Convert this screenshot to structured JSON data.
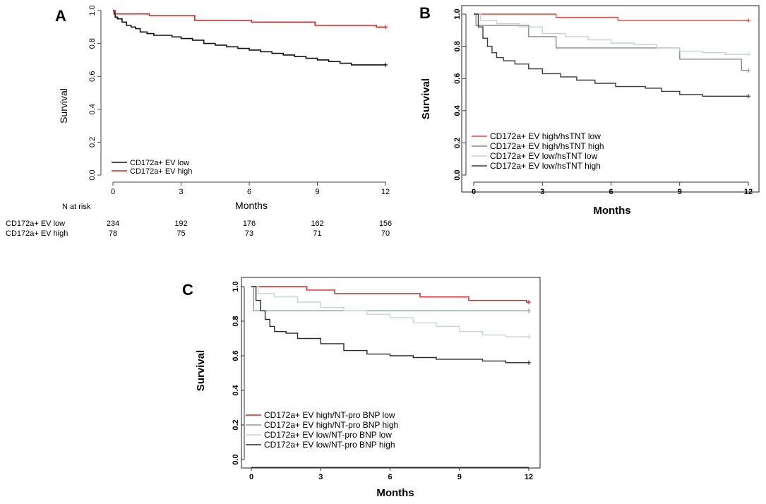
{
  "chart_data": [
    {
      "panel_label": "A",
      "type": "line",
      "title": "",
      "xlabel": "Months",
      "ylabel": "Survival",
      "xlim": [
        0,
        12
      ],
      "ylim": [
        0,
        1
      ],
      "x_ticks": [
        "0",
        "3",
        "6",
        "9",
        "12"
      ],
      "y_ticks": [
        "0.0",
        "0.2",
        "0.4",
        "0.6",
        "0.8",
        "1.0"
      ],
      "legend_position": "bottom-left",
      "series": [
        {
          "name": "CD172a+ EV low",
          "color": "#111111",
          "points": [
            [
              0,
              1.0
            ],
            [
              0.05,
              0.98
            ],
            [
              0.1,
              0.96
            ],
            [
              0.2,
              0.95
            ],
            [
              0.4,
              0.93
            ],
            [
              0.6,
              0.91
            ],
            [
              0.8,
              0.9
            ],
            [
              1.0,
              0.89
            ],
            [
              1.2,
              0.87
            ],
            [
              1.5,
              0.86
            ],
            [
              1.8,
              0.85
            ],
            [
              2.2,
              0.85
            ],
            [
              2.6,
              0.84
            ],
            [
              3.0,
              0.83
            ],
            [
              3.5,
              0.82
            ],
            [
              4.0,
              0.8
            ],
            [
              4.5,
              0.79
            ],
            [
              5.0,
              0.78
            ],
            [
              5.5,
              0.77
            ],
            [
              6.0,
              0.76
            ],
            [
              6.5,
              0.75
            ],
            [
              7.0,
              0.74
            ],
            [
              7.5,
              0.73
            ],
            [
              8.0,
              0.72
            ],
            [
              8.5,
              0.71
            ],
            [
              9.0,
              0.7
            ],
            [
              9.5,
              0.69
            ],
            [
              10.0,
              0.68
            ],
            [
              10.5,
              0.67
            ],
            [
              11.0,
              0.67
            ],
            [
              12.0,
              0.67
            ]
          ]
        },
        {
          "name": "CD172a+ EV high",
          "color": "#e02020",
          "points": [
            [
              0,
              1.0
            ],
            [
              0.1,
              0.98
            ],
            [
              1.5,
              0.98
            ],
            [
              1.6,
              0.97
            ],
            [
              3.5,
              0.97
            ],
            [
              3.6,
              0.94
            ],
            [
              6.0,
              0.94
            ],
            [
              6.1,
              0.93
            ],
            [
              8.8,
              0.93
            ],
            [
              8.9,
              0.91
            ],
            [
              11.5,
              0.91
            ],
            [
              11.6,
              0.9
            ],
            [
              12.0,
              0.9
            ]
          ]
        }
      ],
      "risk_table": {
        "header": "N at risk",
        "rows": [
          {
            "label": "CD172a+ EV low",
            "values": [
              "234",
              "192",
              "176",
              "162",
              "156"
            ]
          },
          {
            "label": "CD172a+ EV high",
            "values": [
              "78",
              "75",
              "73",
              "71",
              "70"
            ]
          }
        ]
      }
    },
    {
      "panel_label": "B",
      "type": "line",
      "title": "",
      "xlabel": "Months",
      "ylabel": "Survival",
      "xlim": [
        0,
        12
      ],
      "ylim": [
        0,
        1
      ],
      "x_ticks": [
        "0",
        "3",
        "6",
        "9",
        "12"
      ],
      "y_ticks": [
        "0.0",
        "0.2",
        "0.4",
        "0.6",
        "0.8",
        "1.0"
      ],
      "legend_position": "bottom-left",
      "series": [
        {
          "name": "CD172a+ EV high/hsTNT low",
          "color": "#e8413c",
          "points": [
            [
              0,
              1.0
            ],
            [
              3.5,
              1.0
            ],
            [
              3.6,
              0.98
            ],
            [
              6.2,
              0.98
            ],
            [
              6.3,
              0.96
            ],
            [
              12,
              0.96
            ]
          ]
        },
        {
          "name": "CD172a+ EV high/hsTNT high",
          "color": "#8a8a8a",
          "points": [
            [
              0,
              1.0
            ],
            [
              0.1,
              0.93
            ],
            [
              2.3,
              0.93
            ],
            [
              2.4,
              0.86
            ],
            [
              3.5,
              0.86
            ],
            [
              3.6,
              0.79
            ],
            [
              8.9,
              0.79
            ],
            [
              9.0,
              0.72
            ],
            [
              11.6,
              0.72
            ],
            [
              11.7,
              0.65
            ],
            [
              12,
              0.65
            ]
          ]
        },
        {
          "name": "CD172a+ EV low/hsTNT low",
          "color": "#c2d2cc",
          "points": [
            [
              0,
              1.0
            ],
            [
              0.3,
              0.96
            ],
            [
              1.0,
              0.94
            ],
            [
              2.0,
              0.92
            ],
            [
              3.0,
              0.88
            ],
            [
              4.0,
              0.86
            ],
            [
              5.0,
              0.84
            ],
            [
              6.0,
              0.82
            ],
            [
              7.0,
              0.81
            ],
            [
              8.0,
              0.79
            ],
            [
              9.0,
              0.77
            ],
            [
              10.0,
              0.76
            ],
            [
              11.0,
              0.75
            ],
            [
              12,
              0.75
            ]
          ]
        },
        {
          "name": "CD172a+ EV low/hsTNT high",
          "color": "#3a3a3a",
          "points": [
            [
              0,
              1.0
            ],
            [
              0.2,
              0.92
            ],
            [
              0.4,
              0.85
            ],
            [
              0.6,
              0.8
            ],
            [
              0.8,
              0.76
            ],
            [
              1.0,
              0.73
            ],
            [
              1.3,
              0.71
            ],
            [
              1.8,
              0.69
            ],
            [
              2.4,
              0.66
            ],
            [
              3.0,
              0.63
            ],
            [
              3.8,
              0.61
            ],
            [
              4.5,
              0.59
            ],
            [
              5.3,
              0.57
            ],
            [
              6.2,
              0.55
            ],
            [
              7.5,
              0.54
            ],
            [
              8.2,
              0.52
            ],
            [
              9.0,
              0.5
            ],
            [
              10.0,
              0.49
            ],
            [
              11.0,
              0.49
            ],
            [
              12,
              0.49
            ]
          ]
        }
      ]
    },
    {
      "panel_label": "C",
      "type": "line",
      "title": "",
      "xlabel": "Months",
      "ylabel": "Survival",
      "xlim": [
        0,
        12
      ],
      "ylim": [
        0,
        1
      ],
      "x_ticks": [
        "0",
        "3",
        "6",
        "9",
        "12"
      ],
      "y_ticks": [
        "0.0",
        "0.2",
        "0.4",
        "0.6",
        "0.8",
        "1.0"
      ],
      "legend_position": "bottom-left",
      "series": [
        {
          "name": "CD172a+ EV high/NT-pro BNP low",
          "color": "#e02020",
          "points": [
            [
              0,
              1.0
            ],
            [
              2.3,
              1.0
            ],
            [
              2.4,
              0.98
            ],
            [
              3.5,
              0.98
            ],
            [
              3.6,
              0.96
            ],
            [
              7.2,
              0.96
            ],
            [
              7.3,
              0.94
            ],
            [
              9.3,
              0.94
            ],
            [
              9.4,
              0.92
            ],
            [
              11.8,
              0.92
            ],
            [
              11.9,
              0.91
            ],
            [
              12,
              0.91
            ]
          ]
        },
        {
          "name": "CD172a+ EV high/NT-pro BNP high",
          "color": "#8a9a94",
          "points": [
            [
              0,
              1.0
            ],
            [
              0.1,
              0.86
            ],
            [
              12,
              0.86
            ]
          ]
        },
        {
          "name": "CD172a+ EV low/NT-pro BNP low",
          "color": "#c5d6cf",
          "points": [
            [
              0,
              1.0
            ],
            [
              0.3,
              0.96
            ],
            [
              1.0,
              0.94
            ],
            [
              2.0,
              0.91
            ],
            [
              3.0,
              0.88
            ],
            [
              4.0,
              0.86
            ],
            [
              5.0,
              0.84
            ],
            [
              6.0,
              0.82
            ],
            [
              7.0,
              0.79
            ],
            [
              8.0,
              0.77
            ],
            [
              9.0,
              0.74
            ],
            [
              10.0,
              0.72
            ],
            [
              11.0,
              0.71
            ],
            [
              12,
              0.71
            ]
          ]
        },
        {
          "name": "CD172a+ EV low/NT-pro BNP high",
          "color": "#2a2a2a",
          "points": [
            [
              0,
              1.0
            ],
            [
              0.2,
              0.92
            ],
            [
              0.4,
              0.86
            ],
            [
              0.6,
              0.81
            ],
            [
              0.8,
              0.77
            ],
            [
              1.0,
              0.74
            ],
            [
              1.5,
              0.73
            ],
            [
              2.0,
              0.7
            ],
            [
              3.0,
              0.67
            ],
            [
              4.0,
              0.63
            ],
            [
              5.0,
              0.61
            ],
            [
              6.0,
              0.6
            ],
            [
              7.0,
              0.59
            ],
            [
              8.0,
              0.58
            ],
            [
              9.0,
              0.58
            ],
            [
              10.0,
              0.57
            ],
            [
              11.0,
              0.56
            ],
            [
              12,
              0.56
            ]
          ]
        }
      ]
    }
  ]
}
